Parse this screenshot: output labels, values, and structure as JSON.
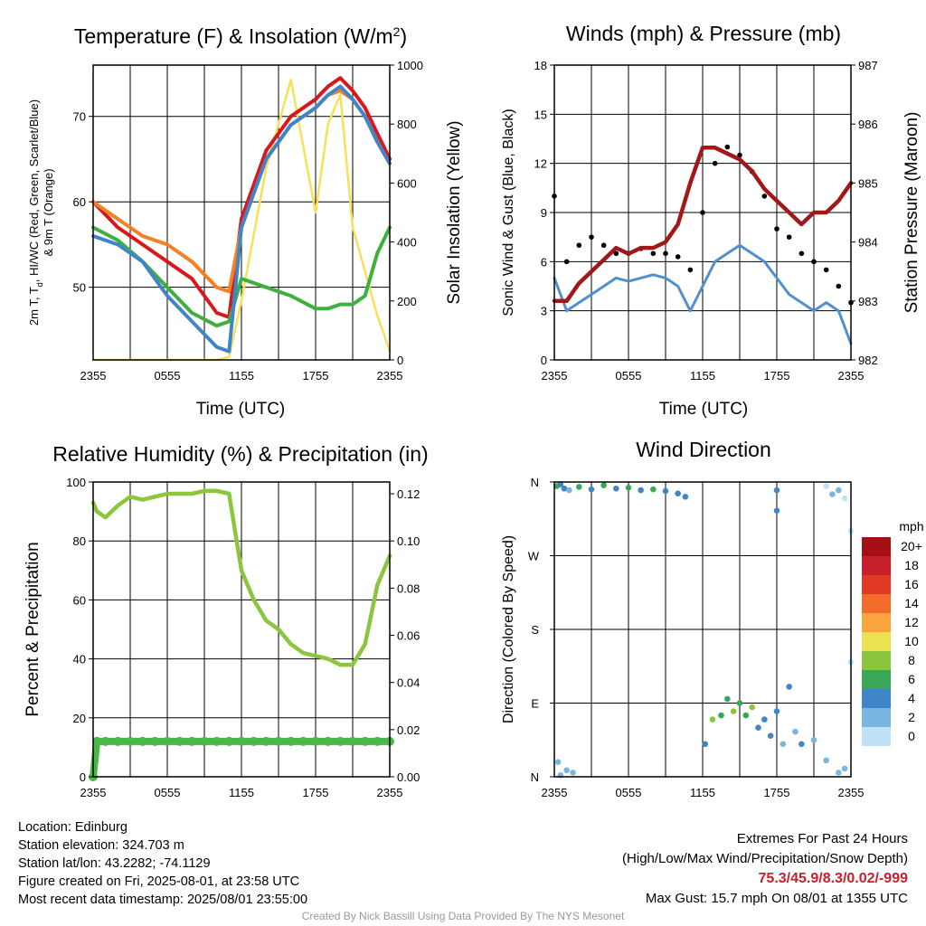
{
  "panels": {
    "temp": {
      "title": "Temperature (F) & Insolation (W/m²)",
      "xlabel": "Time (UTC)",
      "ylabel_line1": "2m T, Td, HI/WC (Red, Green, Scarlet/Blue)",
      "ylabel_line2": "& 9m T (Orange)",
      "ylabel_right": "Solar Insolation (Yellow)"
    },
    "wind": {
      "title": "Winds (mph) & Pressure (mb)",
      "xlabel": "Time (UTC)",
      "ylabel": "Sonic Wind & Gust (Blue, Black)",
      "ylabel_right": "Station Pressure (Maroon)"
    },
    "rh": {
      "title": "Relative Humidity (%) & Precipitation (in)",
      "ylabel": "Percent & Precipitation"
    },
    "dir": {
      "title": "Wind Direction",
      "ylabel": "Direction (Colored By Speed)",
      "legend_title": "mph"
    }
  },
  "footer": {
    "location": "Location: Edinburg",
    "elevation": "Station elevation: 324.703 m",
    "latlon": "Station lat/lon: 43.2282; -74.1129",
    "created": "Figure created on Fri, 2025-08-01, at 23:58 UTC",
    "recent": "Most recent data timestamp: 2025/08/01 23:55:00",
    "extremes_title": "Extremes For Past 24 Hours",
    "extremes_sub": "(High/Low/Max Wind/Precipitation/Snow Depth)",
    "extremes_values": "75.3/45.9/8.3/0.02/-999",
    "max_gust": "Max Gust: 15.7 mph On 08/01 at 1355 UTC",
    "credit": "Created By Nick Bassill Using Data Provided By The NYS Mesonet"
  },
  "chart_data": [
    {
      "type": "line",
      "title": "Temperature (F) & Insolation (W/m²)",
      "xlabel": "Time (UTC)",
      "x_ticks": [
        "2355",
        "0555",
        "1155",
        "1755",
        "2355"
      ],
      "x": [
        0,
        2,
        4,
        6,
        8,
        10,
        11,
        12,
        14,
        16,
        18,
        19,
        20,
        21,
        22,
        23,
        24
      ],
      "ylim": [
        41.5,
        76
      ],
      "y_ticks": [
        50,
        60,
        70
      ],
      "y2lim": [
        0,
        1000
      ],
      "y2_ticks": [
        0,
        200,
        400,
        600,
        800,
        1000
      ],
      "series": [
        {
          "name": "2m T",
          "color": "#d7191c",
          "axis": "left",
          "values": [
            60,
            57,
            55,
            53,
            51,
            47,
            46.5,
            58,
            66,
            70,
            72,
            73.5,
            74.5,
            73,
            71,
            68,
            65
          ]
        },
        {
          "name": "9m T",
          "color": "#f58025",
          "axis": "left",
          "values": [
            60,
            58,
            56,
            55,
            53,
            50,
            49.5,
            57,
            65,
            69,
            71,
            72.5,
            73,
            72,
            70,
            67,
            64.5
          ]
        },
        {
          "name": "Td",
          "color": "#3faf3f",
          "axis": "left",
          "values": [
            57,
            55.5,
            53,
            50,
            47,
            45.5,
            46,
            51,
            50,
            49,
            47.5,
            47.5,
            48,
            48,
            49,
            54,
            57
          ]
        },
        {
          "name": "HI/WC",
          "color": "#3f86c8",
          "axis": "left",
          "values": [
            56,
            55,
            53,
            49,
            46,
            43,
            42.5,
            57,
            65,
            69,
            71,
            72.5,
            73.5,
            72,
            70,
            67,
            64.5
          ]
        },
        {
          "name": "Solar Insolation",
          "color": "#f8e157",
          "axis": "right",
          "values": [
            0,
            0,
            0,
            0,
            0,
            0,
            10,
            200,
            650,
            950,
            500,
            800,
            900,
            450,
            300,
            150,
            30
          ]
        }
      ]
    },
    {
      "type": "line",
      "title": "Winds (mph) & Pressure (mb)",
      "xlabel": "Time (UTC)",
      "x_ticks": [
        "2355",
        "0555",
        "1155",
        "1755",
        "2355"
      ],
      "x": [
        0,
        1,
        2,
        3,
        4,
        5,
        6,
        7,
        8,
        9,
        10,
        11,
        12,
        13,
        14,
        15,
        16,
        17,
        18,
        19,
        20,
        21,
        22,
        23,
        24
      ],
      "ylim": [
        0,
        18
      ],
      "y_ticks": [
        0,
        3,
        6,
        9,
        12,
        15,
        18
      ],
      "y2lim": [
        982,
        987
      ],
      "y2_ticks": [
        982,
        983,
        984,
        985,
        986,
        987
      ],
      "series": [
        {
          "name": "Sonic Wind",
          "color": "#4f91cf",
          "axis": "left",
          "values": [
            5,
            3,
            3.5,
            4,
            4.5,
            5,
            4.8,
            5,
            5.2,
            5,
            4.5,
            3,
            4.5,
            6,
            6.5,
            7,
            6.5,
            6,
            5,
            4,
            3.5,
            3,
            3.5,
            3,
            1
          ]
        },
        {
          "name": "Gust",
          "color": "#000000",
          "axis": "left",
          "values": [
            10,
            6,
            7,
            7.5,
            7,
            6.5,
            6.5,
            6.8,
            6.5,
            6.5,
            6.3,
            5.5,
            9,
            12,
            13,
            12.5,
            11.5,
            10,
            8,
            7.5,
            6.5,
            6,
            5.5,
            4.5,
            3.5
          ]
        },
        {
          "name": "Station Pressure",
          "color": "#a01818",
          "axis": "right",
          "values": [
            983.0,
            983.0,
            983.3,
            983.5,
            983.7,
            983.9,
            983.8,
            983.9,
            983.9,
            984.0,
            984.3,
            985.0,
            985.6,
            985.6,
            985.5,
            985.4,
            985.2,
            984.9,
            984.7,
            984.5,
            984.3,
            984.5,
            984.5,
            984.7,
            985.0
          ]
        }
      ]
    },
    {
      "type": "line",
      "title": "Relative Humidity (%) & Precipitation (in)",
      "x_ticks": [
        "2355",
        "0555",
        "1155",
        "1755",
        "2355"
      ],
      "x": [
        0,
        0.3,
        1,
        2,
        3,
        4,
        5,
        6,
        7,
        8,
        9,
        10,
        11,
        12,
        13,
        14,
        15,
        16,
        17,
        18,
        19,
        20,
        21,
        22,
        23,
        24
      ],
      "ylim": [
        0,
        100
      ],
      "y_ticks": [
        0,
        20,
        40,
        60,
        80,
        100
      ],
      "y2lim": [
        0,
        0.125
      ],
      "y2_ticks": [
        0.0,
        0.02,
        0.04,
        0.06,
        0.08,
        0.1,
        0.12
      ],
      "series": [
        {
          "name": "Relative Humidity",
          "color": "#8cc63e",
          "axis": "left",
          "values": [
            93,
            90,
            88,
            92,
            95,
            94,
            95,
            96,
            96,
            96,
            97,
            97,
            96,
            70,
            60,
            53,
            50,
            45,
            42,
            41,
            40,
            38,
            38,
            45,
            65,
            75
          ]
        },
        {
          "name": "Precipitation",
          "color": "#49b848",
          "axis": "right",
          "values": [
            0,
            0.015,
            0.015,
            0.015,
            0.015,
            0.015,
            0.015,
            0.015,
            0.015,
            0.015,
            0.015,
            0.015,
            0.015,
            0.015,
            0.015,
            0.015,
            0.015,
            0.015,
            0.015,
            0.015,
            0.015,
            0.015,
            0.015,
            0.015,
            0.015,
            0.015
          ]
        }
      ]
    },
    {
      "type": "scatter",
      "title": "Wind Direction",
      "ylabel": "Direction (Colored By Speed)",
      "x_ticks": [
        "2355",
        "0555",
        "1155",
        "1755",
        "2355"
      ],
      "y_ticks": [
        "N",
        "E",
        "S",
        "W",
        "N"
      ],
      "ylim": [
        0,
        360
      ],
      "legend": {
        "title": "mph",
        "labels": [
          "20+",
          "18",
          "16",
          "14",
          "12",
          "10",
          "8",
          "6",
          "4",
          "2",
          "0"
        ],
        "colors": [
          "#a50f15",
          "#c8202a",
          "#e03a26",
          "#f26b2a",
          "#f9a43c",
          "#e9e352",
          "#8cc63e",
          "#3aa65a",
          "#3f86c8",
          "#7ab6e0",
          "#bfe2f6"
        ]
      },
      "points": [
        {
          "x": 0.2,
          "y": 355,
          "speed": 6
        },
        {
          "x": 0.5,
          "y": 357,
          "speed": 4
        },
        {
          "x": 0.8,
          "y": 352,
          "speed": 4
        },
        {
          "x": 1.2,
          "y": 350,
          "speed": 2
        },
        {
          "x": 2,
          "y": 354,
          "speed": 6
        },
        {
          "x": 3,
          "y": 351,
          "speed": 4
        },
        {
          "x": 4,
          "y": 356,
          "speed": 6
        },
        {
          "x": 5,
          "y": 352,
          "speed": 4
        },
        {
          "x": 6,
          "y": 353,
          "speed": 6
        },
        {
          "x": 7,
          "y": 350,
          "speed": 4
        },
        {
          "x": 8,
          "y": 351,
          "speed": 6
        },
        {
          "x": 9,
          "y": 349,
          "speed": 4
        },
        {
          "x": 10,
          "y": 346,
          "speed": 4
        },
        {
          "x": 10.6,
          "y": 342,
          "speed": 4
        },
        {
          "x": 0.5,
          "y": 2,
          "speed": 2
        },
        {
          "x": 1,
          "y": 8,
          "speed": 2
        },
        {
          "x": 1.5,
          "y": 5,
          "speed": 2
        },
        {
          "x": 0.3,
          "y": 18,
          "speed": 2
        },
        {
          "x": 12.2,
          "y": 40,
          "speed": 4
        },
        {
          "x": 12.8,
          "y": 70,
          "speed": 8
        },
        {
          "x": 13.5,
          "y": 75,
          "speed": 6
        },
        {
          "x": 14,
          "y": 95,
          "speed": 6
        },
        {
          "x": 14.5,
          "y": 80,
          "speed": 8
        },
        {
          "x": 15,
          "y": 90,
          "speed": 6
        },
        {
          "x": 15.5,
          "y": 75,
          "speed": 6
        },
        {
          "x": 16,
          "y": 85,
          "speed": 8
        },
        {
          "x": 16.5,
          "y": 60,
          "speed": 4
        },
        {
          "x": 17,
          "y": 70,
          "speed": 4
        },
        {
          "x": 17.5,
          "y": 50,
          "speed": 4
        },
        {
          "x": 18,
          "y": 80,
          "speed": 4
        },
        {
          "x": 18.5,
          "y": 40,
          "speed": 2
        },
        {
          "x": 19,
          "y": 110,
          "speed": 4
        },
        {
          "x": 19.5,
          "y": 55,
          "speed": 2
        },
        {
          "x": 20,
          "y": 40,
          "speed": 4
        },
        {
          "x": 21,
          "y": 45,
          "speed": 2
        },
        {
          "x": 22,
          "y": 20,
          "speed": 2
        },
        {
          "x": 23,
          "y": 5,
          "speed": 2
        },
        {
          "x": 23.5,
          "y": 10,
          "speed": 2
        },
        {
          "x": 18,
          "y": 350,
          "speed": 4
        },
        {
          "x": 18,
          "y": 325,
          "speed": 4
        },
        {
          "x": 22,
          "y": 355,
          "speed": 0
        },
        {
          "x": 22.5,
          "y": 345,
          "speed": 2
        },
        {
          "x": 23,
          "y": 350,
          "speed": 2
        },
        {
          "x": 23.5,
          "y": 340,
          "speed": 0
        },
        {
          "x": 24,
          "y": 300,
          "speed": 0
        },
        {
          "x": 24,
          "y": 140,
          "speed": 0
        }
      ]
    }
  ]
}
